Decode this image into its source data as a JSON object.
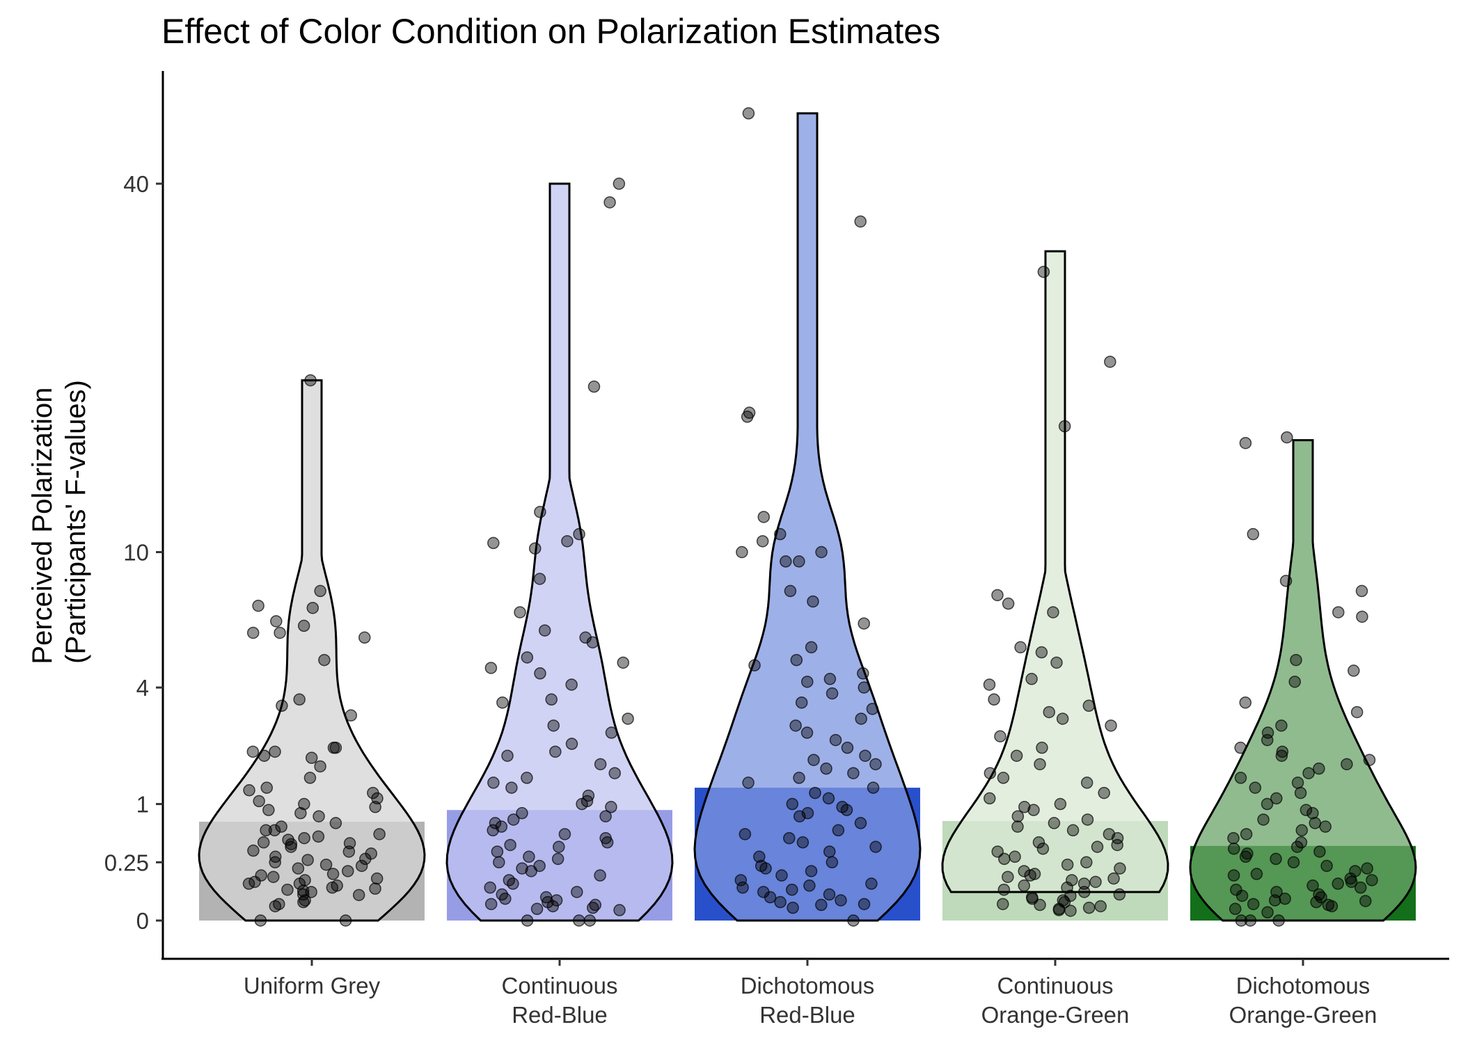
{
  "chart_data": {
    "type": "bar",
    "title": "Effect of Color Condition on Polarization Estimates",
    "xlabel": "",
    "ylabel_lines": [
      "Perceived Polarization",
      "(Participants' F-values)"
    ],
    "y_scale": "sqrt",
    "ylim": [
      0,
      53
    ],
    "y_ticks": [
      {
        "value": 0,
        "label": "0"
      },
      {
        "value": 0.25,
        "label": "0.25"
      },
      {
        "value": 1,
        "label": "1"
      },
      {
        "value": 4,
        "label": "4"
      },
      {
        "value": 10,
        "label": "10"
      },
      {
        "value": 40,
        "label": "40"
      }
    ],
    "grid": false,
    "legend": "none",
    "categories": [
      {
        "lines": [
          "Uniform Grey"
        ]
      },
      {
        "lines": [
          "Continuous",
          "Red-Blue"
        ]
      },
      {
        "lines": [
          "Dichotomous",
          "Red-Blue"
        ]
      },
      {
        "lines": [
          "Continuous",
          "Orange-Green"
        ]
      },
      {
        "lines": [
          "Dichotomous",
          "Orange-Green"
        ]
      }
    ],
    "bar_values": [
      0.72,
      0.9,
      1.3,
      0.73,
      0.41
    ],
    "bar_colors": [
      "#b3b3b3",
      "#979de5",
      "#2850cb",
      "#bfdabb",
      "#146f1a"
    ],
    "violin_colors": [
      "#d4d4d4",
      "#c2c4f2",
      "#7e96e0",
      "#d9e8d4",
      "#6ba46a"
    ],
    "violin_max": [
      21.5,
      40,
      48,
      33,
      17
    ],
    "violin_min": [
      0,
      0,
      0,
      0.06,
      0
    ],
    "points": [
      [
        21.5,
        8,
        7.3,
        6.6,
        6.4,
        7.2,
        6.1,
        5.9,
        5,
        3.6,
        3.4,
        3.1,
        2.2,
        2.1,
        1.95,
        2.1,
        2.2,
        2,
        1.75,
        1.5,
        1.3,
        1.25,
        1.2,
        1.1,
        1.05,
        1,
        0.95,
        0.9,
        0.85,
        0.8,
        0.7,
        0.65,
        0.6,
        0.55,
        0.5,
        0.6,
        0.52,
        0.48,
        0.45,
        0.44,
        0.43,
        0.4,
        0.36,
        0.33,
        0.3,
        0.28,
        0.27,
        0.25,
        0.23,
        0.2,
        0.18,
        0.16,
        0.15,
        0.14,
        0.12,
        0.11,
        0.1,
        0.1,
        0.09,
        0.08,
        0.075,
        0.07,
        0.065,
        0.06,
        0.05,
        0.048,
        0.03,
        0.025,
        0.02,
        0.015,
        0,
        0,
        6.1,
        0.35,
        0.22,
        0.13
      ],
      [
        40,
        38,
        21,
        11,
        10.6,
        10.5,
        10.2,
        8.6,
        7,
        6.2,
        5.9,
        5.7,
        5.1,
        4.9,
        4.7,
        4.5,
        4.1,
        3.6,
        3.5,
        3,
        2.8,
        2.6,
        2.3,
        2.1,
        2,
        1.8,
        1.6,
        1.5,
        1.4,
        1.3,
        1.15,
        1.05,
        1,
        0.95,
        0.85,
        0.8,
        0.75,
        0.7,
        0.65,
        0.6,
        0.55,
        0.5,
        0.45,
        0.42,
        0.4,
        0.35,
        0.3,
        0.28,
        0.25,
        0.22,
        0.2,
        0.18,
        0.15,
        0.12,
        0.1,
        0.08,
        0.06,
        0.05,
        0.04,
        0.035,
        0.03,
        0.025,
        0.02,
        0.018,
        0.015,
        0.012,
        0.01,
        0.008,
        0,
        0,
        0,
        12.3
      ],
      [
        48,
        36,
        19,
        18.7,
        12,
        11,
        10,
        10,
        9.5,
        8,
        7.5,
        6.5,
        5.5,
        5,
        4.8,
        4.5,
        4.3,
        4.2,
        4,
        3.8,
        3.5,
        3.3,
        3,
        2.8,
        2.6,
        2.4,
        2.2,
        2,
        1.9,
        1.8,
        1.7,
        1.6,
        1.5,
        1.4,
        1.3,
        1.2,
        1.1,
        1,
        0.95,
        0.9,
        0.85,
        0.8,
        0.7,
        0.6,
        0.55,
        0.5,
        0.45,
        0.4,
        0.35,
        0.3,
        0.25,
        0.22,
        0.2,
        0.18,
        0.15,
        0.12,
        0.1,
        0.09,
        0.08,
        0.07,
        0.06,
        0.05,
        0.04,
        0.03,
        0.025,
        0.02,
        0.018,
        0.012,
        0,
        10.6,
        9.5
      ],
      [
        31,
        23,
        18,
        7.8,
        7.4,
        7,
        5.5,
        5.3,
        4.9,
        4.3,
        4.1,
        3.6,
        3.4,
        3.2,
        3,
        2.8,
        2.5,
        2.2,
        2,
        1.8,
        1.6,
        1.5,
        1.4,
        1.2,
        1.1,
        1,
        0.95,
        0.9,
        0.8,
        0.75,
        0.7,
        0.65,
        0.6,
        0.55,
        0.5,
        0.45,
        0.42,
        0.4,
        0.38,
        0.35,
        0.3,
        0.28,
        0.25,
        0.23,
        0.2,
        0.18,
        0.16,
        0.15,
        0.14,
        0.13,
        0.12,
        0.11,
        0.1,
        0.09,
        0.08,
        0.07,
        0.06,
        0.05,
        0.045,
        0.04,
        0.035,
        0.03,
        0.025,
        0.02,
        0.018,
        0.015,
        0.012,
        0.01,
        0.008,
        0.007
      ],
      [
        17.2,
        16.8,
        11,
        8.5,
        8,
        7,
        6.8,
        5,
        4.6,
        4.2,
        3.5,
        3.2,
        2.8,
        2.6,
        2.4,
        2.2,
        2.1,
        2,
        1.9,
        1.8,
        1.7,
        1.6,
        1.5,
        1.4,
        1.3,
        1.2,
        1.1,
        1,
        0.9,
        0.85,
        0.75,
        0.7,
        0.65,
        0.6,
        0.55,
        0.5,
        0.45,
        0.4,
        0.38,
        0.35,
        0.33,
        0.3,
        0.28,
        0.25,
        0.22,
        0.2,
        0.18,
        0.16,
        0.15,
        0.13,
        0.12,
        0.11,
        0.1,
        0.09,
        0.08,
        0.07,
        0.06,
        0.05,
        0.045,
        0.04,
        0.035,
        0.03,
        0.028,
        0.025,
        0.02,
        0.018,
        0.015,
        0.01,
        0.005,
        0,
        0,
        0
      ]
    ]
  }
}
